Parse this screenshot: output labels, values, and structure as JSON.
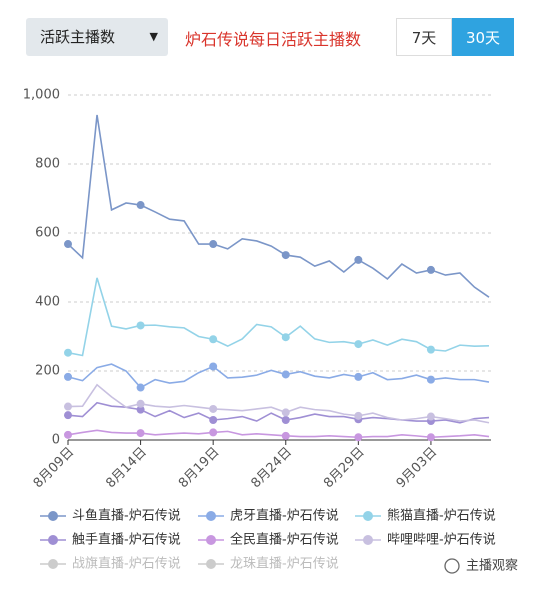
{
  "controls": {
    "dropdown": "活跃主播数",
    "buttons": [
      "7天",
      "30天"
    ],
    "active_button": 1
  },
  "watermark": "主播观察",
  "chart_data": {
    "type": "line",
    "title": "炉石传说每日活跃主播数",
    "categories": [
      "8月09日",
      null,
      null,
      null,
      null,
      "8月14日",
      null,
      null,
      null,
      null,
      "8月19日",
      null,
      null,
      null,
      null,
      "8月24日",
      null,
      null,
      null,
      null,
      "8月29日",
      null,
      null,
      null,
      null,
      "9月03日",
      null,
      null,
      null,
      null
    ],
    "series": [
      {
        "name": "斗鱼直播-炉石传说",
        "color": "#7b96c8",
        "values": [
          568,
          528,
          942,
          667,
          687,
          681,
          661,
          640,
          635,
          568,
          568,
          554,
          583,
          577,
          562,
          536,
          530,
          504,
          519,
          487,
          522,
          498,
          467,
          510,
          484,
          493,
          478,
          484,
          443,
          414
        ]
      },
      {
        "name": "虎牙直播-炉石传说",
        "color": "#8aabe6",
        "values": [
          183,
          172,
          210,
          220,
          200,
          152,
          175,
          165,
          170,
          195,
          213,
          180,
          182,
          188,
          202,
          190,
          198,
          185,
          180,
          190,
          183,
          195,
          175,
          178,
          188,
          175,
          180,
          175,
          175,
          168
        ]
      },
      {
        "name": "熊猫直播-炉石传说",
        "color": "#93d3e8",
        "values": [
          253,
          245,
          470,
          330,
          322,
          332,
          333,
          328,
          325,
          300,
          292,
          272,
          293,
          335,
          328,
          298,
          330,
          293,
          283,
          285,
          278,
          290,
          275,
          292,
          285,
          262,
          258,
          275,
          272,
          273
        ]
      },
      {
        "name": "触手直播-炉石传说",
        "color": "#9f8fd4",
        "values": [
          72,
          68,
          108,
          98,
          95,
          88,
          68,
          85,
          65,
          78,
          58,
          62,
          68,
          55,
          78,
          58,
          65,
          75,
          68,
          68,
          60,
          65,
          62,
          58,
          55,
          55,
          58,
          50,
          62,
          65
        ]
      },
      {
        "name": "全民直播-炉石传说",
        "color": "#c897e0",
        "values": [
          15,
          22,
          28,
          22,
          20,
          20,
          15,
          18,
          20,
          18,
          22,
          25,
          15,
          18,
          15,
          12,
          10,
          10,
          12,
          10,
          8,
          10,
          10,
          15,
          12,
          8,
          10,
          12,
          15,
          10
        ]
      },
      {
        "name": "哔哩哔哩-炉石传说",
        "color": "#c8c0e0",
        "values": [
          97,
          98,
          160,
          125,
          95,
          105,
          98,
          95,
          100,
          95,
          90,
          88,
          85,
          90,
          95,
          80,
          95,
          88,
          85,
          75,
          70,
          78,
          65,
          58,
          62,
          68,
          62,
          55,
          58,
          50
        ]
      }
    ],
    "legend_inactive": [
      "战旗直播-炉石传说",
      "龙珠直播-炉石传说"
    ],
    "inactive_color": "#cccccc",
    "ylim": [
      0,
      1000
    ],
    "yticks": [
      0,
      200,
      400,
      600,
      800,
      {
        "value": 1000,
        "label": "1,000"
      }
    ],
    "grid": true
  }
}
